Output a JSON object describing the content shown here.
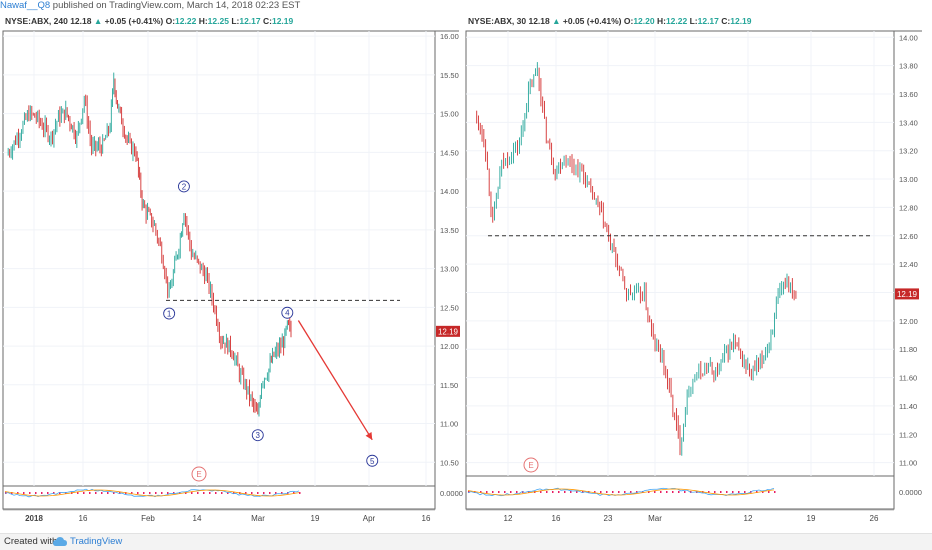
{
  "header": {
    "author": "Nawaf__Q8",
    "published": " published on TradingView.com, March 14, 2018 02:23 EST"
  },
  "footer": {
    "created_with": "Created with",
    "brand": "TradingView"
  },
  "colors": {
    "up": "#26a69a",
    "down": "#d32f2f",
    "price_tag": "#c62828",
    "label": "#2d3a9a",
    "arrow": "#e53935",
    "grid": "#f0f3f8"
  },
  "icons": {
    "event": "E",
    "logo": "tradingview-cloud-icon"
  },
  "chart_data": [
    {
      "type": "candlestick",
      "symbol_info": "NYSE:ABX, 240",
      "ohlc_text": {
        "price": "12.18",
        "change": "+0.05 (+0.41%)",
        "o": "12.22",
        "h": "12.25",
        "l": "12.17",
        "c": "12.19"
      },
      "y_ticks": [
        "16.00",
        "15.50",
        "15.00",
        "14.50",
        "14.00",
        "13.50",
        "13.00",
        "12.50",
        "12.00",
        "11.50",
        "11.00",
        "10.50"
      ],
      "ylim": [
        10.22,
        16.04
      ],
      "x_ticks": [
        "2018",
        "16",
        "Feb",
        "14",
        "Mar",
        "19",
        "Apr",
        "16"
      ],
      "last_price": "12.19",
      "support_level": 12.59,
      "indicator_tick": "0.0000",
      "event_marker": "E",
      "wave_labels": [
        {
          "label": "1",
          "date": "2018-02-09",
          "price": 12.42
        },
        {
          "label": "2",
          "date": "2018-02-13",
          "price": 14.06
        },
        {
          "label": "3",
          "date": "2018-03-05",
          "price": 10.85
        },
        {
          "label": "4",
          "date": "2018-03-13",
          "price": 12.43
        },
        {
          "label": "5",
          "date": "2018-04-05",
          "price": 10.52
        }
      ],
      "projection_arrow": {
        "from": {
          "date": "2018-03-16",
          "price": 12.33
        },
        "to": {
          "date": "2018-04-05",
          "price": 10.79
        }
      },
      "keypoints": [
        {
          "date": "2017-12-27",
          "price": 14.47
        },
        {
          "date": "2017-12-29",
          "price": 14.62
        },
        {
          "date": "2018-01-02",
          "price": 15.0
        },
        {
          "date": "2018-01-04",
          "price": 14.95
        },
        {
          "date": "2018-01-08",
          "price": 14.7
        },
        {
          "date": "2018-01-10",
          "price": 14.95
        },
        {
          "date": "2018-01-12",
          "price": 15.02
        },
        {
          "date": "2018-01-15",
          "price": 14.7
        },
        {
          "date": "2018-01-17",
          "price": 15.2
        },
        {
          "date": "2018-01-19",
          "price": 14.55
        },
        {
          "date": "2018-01-22",
          "price": 14.58
        },
        {
          "date": "2018-01-24",
          "price": 14.85
        },
        {
          "date": "2018-01-25",
          "price": 15.45
        },
        {
          "date": "2018-01-26",
          "price": 15.1
        },
        {
          "date": "2018-01-29",
          "price": 14.6
        },
        {
          "date": "2018-01-31",
          "price": 14.5
        },
        {
          "date": "2018-02-01",
          "price": 14.1
        },
        {
          "date": "2018-02-02",
          "price": 13.8
        },
        {
          "date": "2018-02-05",
          "price": 13.55
        },
        {
          "date": "2018-02-07",
          "price": 13.2
        },
        {
          "date": "2018-02-09",
          "price": 12.65
        },
        {
          "date": "2018-02-12",
          "price": 13.4
        },
        {
          "date": "2018-02-13",
          "price": 13.75
        },
        {
          "date": "2018-02-15",
          "price": 13.2
        },
        {
          "date": "2018-02-19",
          "price": 12.9
        },
        {
          "date": "2018-02-21",
          "price": 12.55
        },
        {
          "date": "2018-02-23",
          "price": 12.1
        },
        {
          "date": "2018-02-26",
          "price": 11.95
        },
        {
          "date": "2018-02-28",
          "price": 11.65
        },
        {
          "date": "2018-03-02",
          "price": 11.45
        },
        {
          "date": "2018-03-05",
          "price": 11.08
        },
        {
          "date": "2018-03-06",
          "price": 11.55
        },
        {
          "date": "2018-03-08",
          "price": 11.7
        },
        {
          "date": "2018-03-09",
          "price": 11.85
        },
        {
          "date": "2018-03-12",
          "price": 12.05
        },
        {
          "date": "2018-03-13",
          "price": 12.25
        },
        {
          "date": "2018-03-14",
          "price": 12.19
        }
      ]
    },
    {
      "type": "candlestick",
      "symbol_info": "NYSE:ABX, 30",
      "ohlc_text": {
        "price": "12.18",
        "change": "+0.05 (+0.41%)",
        "o": "12.20",
        "h": "12.22",
        "l": "12.17",
        "c": "12.19"
      },
      "y_ticks": [
        "14.00",
        "13.80",
        "13.60",
        "13.40",
        "13.20",
        "13.00",
        "12.80",
        "12.60",
        "12.40",
        "12.20",
        "12.00",
        "11.80",
        "11.60",
        "11.40",
        "11.20",
        "11.00"
      ],
      "ylim": [
        10.92,
        14.03
      ],
      "x_ticks": [
        "12",
        "16",
        "23",
        "Mar",
        "12",
        "19",
        "26"
      ],
      "last_price": "12.19",
      "support_level": 12.6,
      "indicator_tick": "0.0000",
      "event_marker": "E",
      "keypoints": [
        {
          "date": "2018-02-07",
          "price": 13.45
        },
        {
          "date": "2018-02-08",
          "price": 13.3
        },
        {
          "date": "2018-02-09",
          "price": 12.7
        },
        {
          "date": "2018-02-10",
          "price": 13.1
        },
        {
          "date": "2018-02-12",
          "price": 13.25
        },
        {
          "date": "2018-02-13",
          "price": 13.6
        },
        {
          "date": "2018-02-14",
          "price": 13.78
        },
        {
          "date": "2018-02-15",
          "price": 13.3
        },
        {
          "date": "2018-02-16",
          "price": 13.05
        },
        {
          "date": "2018-02-17",
          "price": 13.15
        },
        {
          "date": "2018-02-19",
          "price": 13.05
        },
        {
          "date": "2018-02-20",
          "price": 12.9
        },
        {
          "date": "2018-02-21",
          "price": 12.78
        },
        {
          "date": "2018-02-22",
          "price": 12.58
        },
        {
          "date": "2018-02-23",
          "price": 12.4
        },
        {
          "date": "2018-02-24",
          "price": 12.2
        },
        {
          "date": "2018-02-26",
          "price": 12.18
        },
        {
          "date": "2018-02-27",
          "price": 11.85
        },
        {
          "date": "2018-02-28",
          "price": 11.75
        },
        {
          "date": "2018-03-01",
          "price": 11.45
        },
        {
          "date": "2018-03-02",
          "price": 11.12
        },
        {
          "date": "2018-03-03",
          "price": 11.55
        },
        {
          "date": "2018-03-05",
          "price": 11.68
        },
        {
          "date": "2018-03-06",
          "price": 11.62
        },
        {
          "date": "2018-03-07",
          "price": 11.75
        },
        {
          "date": "2018-03-08",
          "price": 11.85
        },
        {
          "date": "2018-03-09",
          "price": 11.72
        },
        {
          "date": "2018-03-10",
          "price": 11.62
        },
        {
          "date": "2018-03-11",
          "price": 11.7
        },
        {
          "date": "2018-03-12",
          "price": 11.85
        },
        {
          "date": "2018-03-13",
          "price": 12.15
        },
        {
          "date": "2018-03-14",
          "price": 12.3
        },
        {
          "date": "2018-03-15",
          "price": 12.19
        }
      ]
    }
  ]
}
